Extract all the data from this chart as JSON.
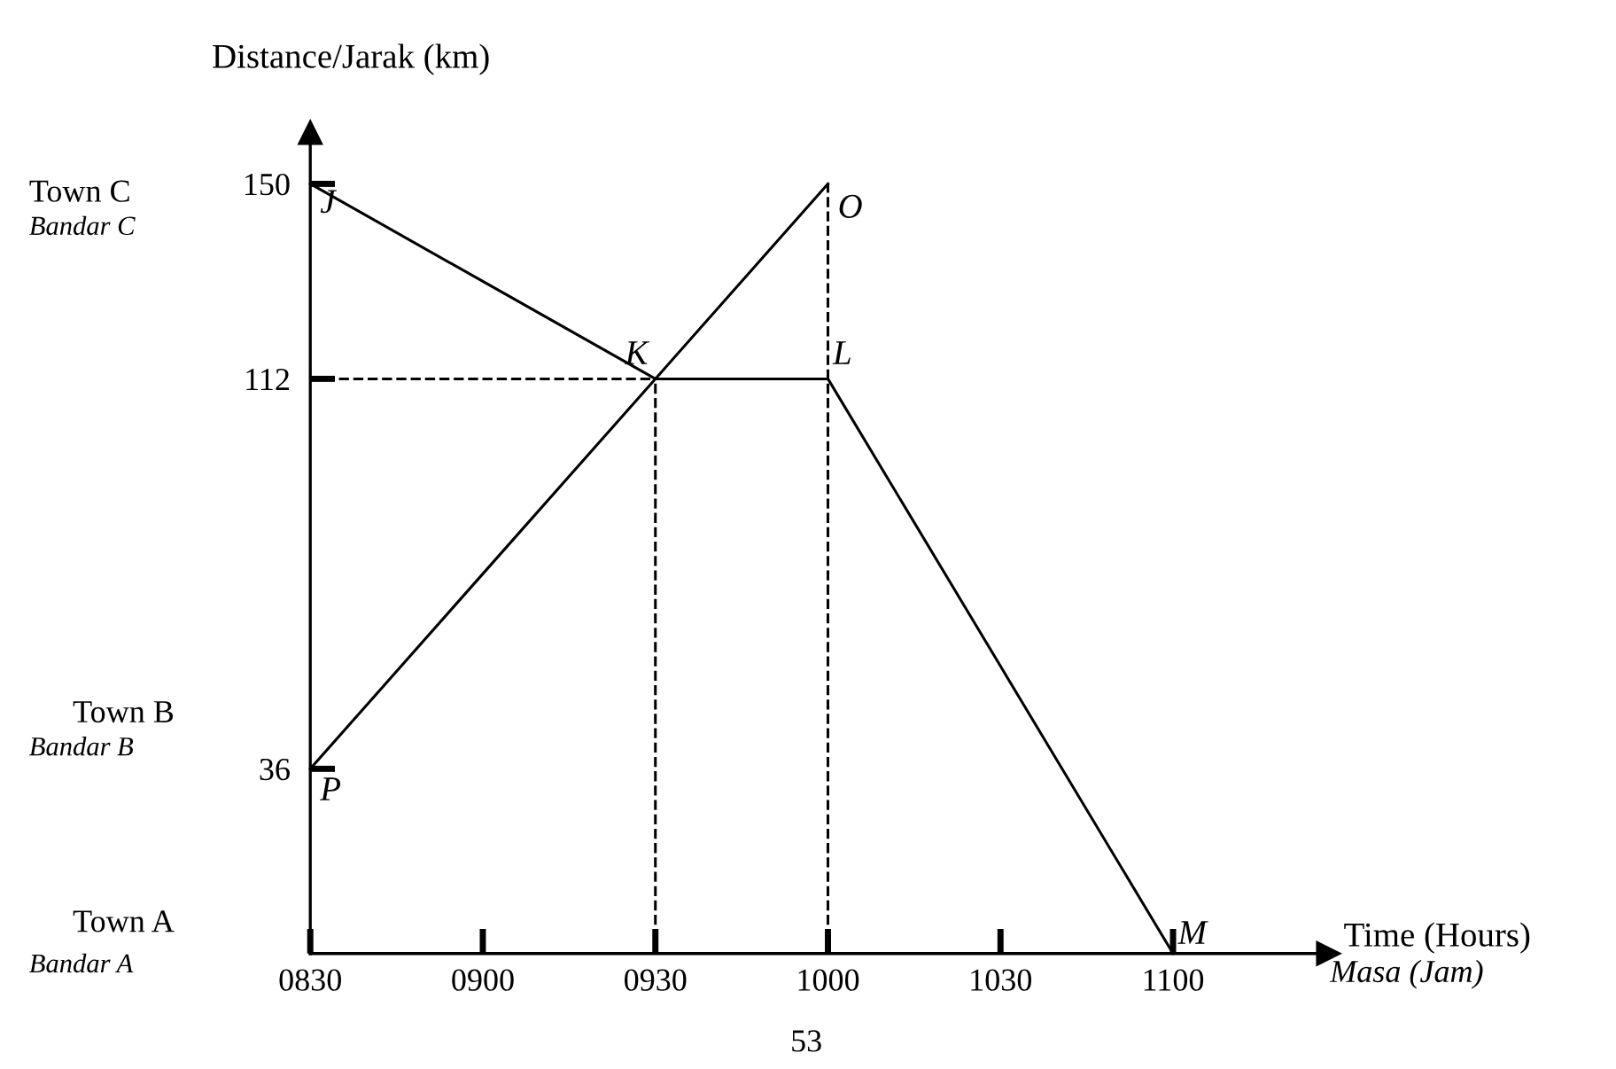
{
  "chart_data": {
    "type": "line",
    "xlabel": "Time (Hours)",
    "ylabel": "Distance/Jarak (km)",
    "categories": [
      "0830",
      "0900",
      "0930",
      "1000",
      "1030",
      "1100"
    ],
    "ylim": [
      0,
      160
    ],
    "yticks": [
      36,
      112,
      150
    ],
    "grid": false,
    "legend": false,
    "marker": "none",
    "series": [
      {
        "color": "#000000",
        "values": [
          150,
          131,
          112,
          112,
          56,
          0
        ],
        "line_style": "solid"
      },
      {
        "color": "#000000",
        "values": [
          36,
          74,
          112,
          150,
          null,
          null
        ],
        "line_style": "solid"
      },
      {
        "color": "#000000",
        "values": [
          112,
          112,
          112,
          null,
          null,
          null
        ],
        "line_style": "dashed"
      }
    ],
    "ref_lines": [
      {
        "axis": "x",
        "value": "0930",
        "color": "#000000",
        "line_style": "dashed"
      },
      {
        "axis": "x",
        "value": "1000",
        "color": "#000000",
        "line_style": "dashed"
      }
    ],
    "annotations": [
      "Masa (Jam)",
      "53",
      "Town C",
      "Bandar C",
      "Town B",
      "Bandar B",
      "Town A",
      "Bandar A",
      {
        "text": "J",
        "x": "0830",
        "y": 150
      },
      {
        "text": "K",
        "x": "0930",
        "y": 112
      },
      {
        "text": "L",
        "x": "1000",
        "y": 112
      },
      {
        "text": "M",
        "x": "1100",
        "y": 0
      },
      {
        "text": "O",
        "x": "1000",
        "y": 150
      },
      {
        "text": "P",
        "x": "0830",
        "y": 36
      }
    ]
  }
}
